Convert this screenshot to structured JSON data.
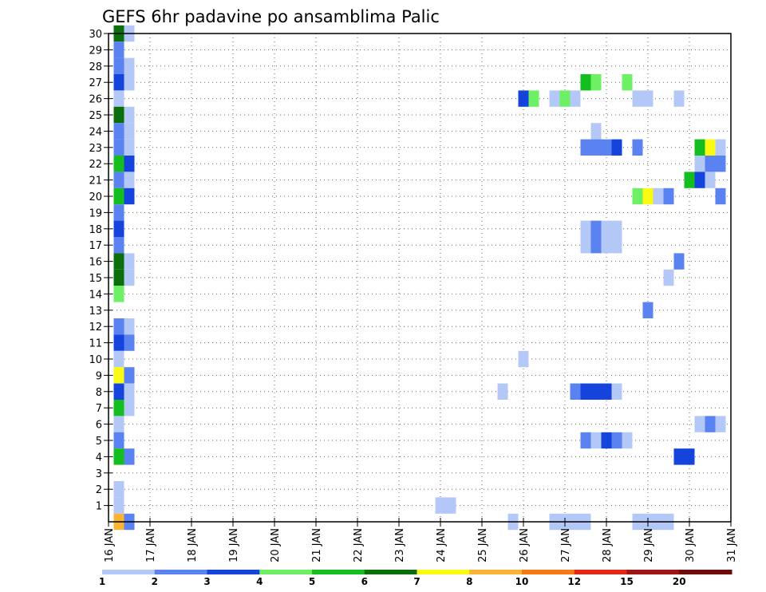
{
  "chart_data": {
    "type": "heatmap",
    "title": "GEFS 6hr padavine po ansamblima Palic",
    "x_axis": {
      "unit": "day of January (6-hour steps)",
      "range": [
        16,
        31
      ],
      "tick_values": [
        16,
        17,
        18,
        19,
        20,
        21,
        22,
        23,
        24,
        25,
        26,
        27,
        28,
        29,
        30,
        31
      ],
      "tick_labels": [
        "16 JAN",
        "17 JAN",
        "18 JAN",
        "19 JAN",
        "20 JAN",
        "21 JAN",
        "22 JAN",
        "23 JAN",
        "24 JAN",
        "25 JAN",
        "26 JAN",
        "27 JAN",
        "28 JAN",
        "29 JAN",
        "30 JAN",
        "31 JAN"
      ]
    },
    "y_axis": {
      "unit": "ensemble member",
      "range": [
        0,
        30
      ],
      "tick_values": [
        1,
        2,
        3,
        4,
        5,
        6,
        7,
        8,
        9,
        10,
        11,
        12,
        13,
        14,
        15,
        16,
        17,
        18,
        19,
        20,
        21,
        22,
        23,
        24,
        25,
        26,
        27,
        28,
        29,
        30
      ],
      "tick_labels": [
        "1",
        "2",
        "3",
        "4",
        "5",
        "6",
        "7",
        "8",
        "9",
        "10",
        "11",
        "12",
        "13",
        "14",
        "15",
        "16",
        "17",
        "18",
        "19",
        "20",
        "21",
        "22",
        "23",
        "24",
        "25",
        "26",
        "27",
        "28",
        "29",
        "30"
      ]
    },
    "grid": true,
    "legend": {
      "placement": "bottom",
      "labels": [
        "1",
        "2",
        "3",
        "4",
        "5",
        "6",
        "7",
        "8",
        "10",
        "12",
        "15",
        "20"
      ],
      "colors": [
        "#b4c8f8",
        "#5a82f0",
        "#1444dc",
        "#6ef064",
        "#14be1e",
        "#0a6e0a",
        "#fafa14",
        "#f8b432",
        "#f87814",
        "#e02814",
        "#a01414",
        "#6e0a0a"
      ]
    },
    "cells": [
      {
        "member": 30,
        "time": 16.25,
        "level": 5
      },
      {
        "member": 30,
        "time": 16.5,
        "level": 0
      },
      {
        "member": 29,
        "time": 16.25,
        "level": 1
      },
      {
        "member": 28,
        "time": 16.25,
        "level": 1
      },
      {
        "member": 28,
        "time": 16.5,
        "level": 0
      },
      {
        "member": 27,
        "time": 16.25,
        "level": 2
      },
      {
        "member": 27,
        "time": 16.5,
        "level": 0
      },
      {
        "member": 27,
        "time": 27.5,
        "level": 4
      },
      {
        "member": 27,
        "time": 27.75,
        "level": 3
      },
      {
        "member": 27,
        "time": 28.5,
        "level": 3
      },
      {
        "member": 26,
        "time": 16.25,
        "level": 0
      },
      {
        "member": 26,
        "time": 26,
        "level": 2
      },
      {
        "member": 26,
        "time": 26.25,
        "level": 3
      },
      {
        "member": 26,
        "time": 26.75,
        "level": 0
      },
      {
        "member": 26,
        "time": 27,
        "level": 3
      },
      {
        "member": 26,
        "time": 27.25,
        "level": 0
      },
      {
        "member": 26,
        "time": 28.75,
        "level": 0
      },
      {
        "member": 26,
        "time": 29,
        "level": 0
      },
      {
        "member": 26,
        "time": 29.75,
        "level": 0
      },
      {
        "member": 25,
        "time": 16.25,
        "level": 5
      },
      {
        "member": 25,
        "time": 16.5,
        "level": 0
      },
      {
        "member": 24,
        "time": 16.25,
        "level": 1
      },
      {
        "member": 24,
        "time": 16.5,
        "level": 0
      },
      {
        "member": 24,
        "time": 27.75,
        "level": 0
      },
      {
        "member": 23,
        "time": 16.25,
        "level": 1
      },
      {
        "member": 23,
        "time": 16.5,
        "level": 0
      },
      {
        "member": 23,
        "time": 27.5,
        "level": 1
      },
      {
        "member": 23,
        "time": 27.75,
        "level": 1
      },
      {
        "member": 23,
        "time": 28,
        "level": 1
      },
      {
        "member": 23,
        "time": 28.25,
        "level": 2
      },
      {
        "member": 23,
        "time": 28.75,
        "level": 1
      },
      {
        "member": 23,
        "time": 30.25,
        "level": 4
      },
      {
        "member": 23,
        "time": 30.5,
        "level": 6
      },
      {
        "member": 23,
        "time": 30.75,
        "level": 0
      },
      {
        "member": 22,
        "time": 16.25,
        "level": 4
      },
      {
        "member": 22,
        "time": 16.5,
        "level": 2
      },
      {
        "member": 22,
        "time": 30.25,
        "level": 0
      },
      {
        "member": 22,
        "time": 30.5,
        "level": 1
      },
      {
        "member": 22,
        "time": 30.75,
        "level": 1
      },
      {
        "member": 21,
        "time": 16.25,
        "level": 1
      },
      {
        "member": 21,
        "time": 16.5,
        "level": 0
      },
      {
        "member": 21,
        "time": 30,
        "level": 4
      },
      {
        "member": 21,
        "time": 30.25,
        "level": 2
      },
      {
        "member": 21,
        "time": 30.5,
        "level": 0
      },
      {
        "member": 20,
        "time": 16.25,
        "level": 4
      },
      {
        "member": 20,
        "time": 16.5,
        "level": 2
      },
      {
        "member": 20,
        "time": 28.75,
        "level": 3
      },
      {
        "member": 20,
        "time": 29,
        "level": 6
      },
      {
        "member": 20,
        "time": 29.25,
        "level": 0
      },
      {
        "member": 20,
        "time": 29.5,
        "level": 1
      },
      {
        "member": 20,
        "time": 30.75,
        "level": 1
      },
      {
        "member": 19,
        "time": 16.25,
        "level": 1
      },
      {
        "member": 18,
        "time": 16.25,
        "level": 2
      },
      {
        "member": 18,
        "time": 27.5,
        "level": 0
      },
      {
        "member": 18,
        "time": 27.75,
        "level": 1
      },
      {
        "member": 18,
        "time": 28,
        "level": 0
      },
      {
        "member": 18,
        "time": 28.25,
        "level": 0
      },
      {
        "member": 17,
        "time": 16.25,
        "level": 1
      },
      {
        "member": 17,
        "time": 27.5,
        "level": 0
      },
      {
        "member": 17,
        "time": 27.75,
        "level": 1
      },
      {
        "member": 17,
        "time": 28,
        "level": 0
      },
      {
        "member": 17,
        "time": 28.25,
        "level": 0
      },
      {
        "member": 16,
        "time": 16.25,
        "level": 5
      },
      {
        "member": 16,
        "time": 16.5,
        "level": 0
      },
      {
        "member": 16,
        "time": 29.75,
        "level": 1
      },
      {
        "member": 15,
        "time": 16.25,
        "level": 5
      },
      {
        "member": 15,
        "time": 16.5,
        "level": 0
      },
      {
        "member": 15,
        "time": 29.5,
        "level": 0
      },
      {
        "member": 14,
        "time": 16.25,
        "level": 3
      },
      {
        "member": 13,
        "time": 29,
        "level": 1
      },
      {
        "member": 12,
        "time": 16.25,
        "level": 1
      },
      {
        "member": 12,
        "time": 16.5,
        "level": 0
      },
      {
        "member": 11,
        "time": 16.25,
        "level": 2
      },
      {
        "member": 11,
        "time": 16.5,
        "level": 1
      },
      {
        "member": 10,
        "time": 16.25,
        "level": 0
      },
      {
        "member": 10,
        "time": 26,
        "level": 0
      },
      {
        "member": 9,
        "time": 16.25,
        "level": 6
      },
      {
        "member": 9,
        "time": 16.5,
        "level": 1
      },
      {
        "member": 8,
        "time": 16.25,
        "level": 2
      },
      {
        "member": 8,
        "time": 16.5,
        "level": 0
      },
      {
        "member": 8,
        "time": 25.5,
        "level": 0
      },
      {
        "member": 8,
        "time": 27.25,
        "level": 1
      },
      {
        "member": 8,
        "time": 27.5,
        "level": 2
      },
      {
        "member": 8,
        "time": 27.75,
        "level": 2
      },
      {
        "member": 8,
        "time": 28,
        "level": 2
      },
      {
        "member": 8,
        "time": 28.25,
        "level": 0
      },
      {
        "member": 7,
        "time": 16.25,
        "level": 4
      },
      {
        "member": 7,
        "time": 16.5,
        "level": 0
      },
      {
        "member": 6,
        "time": 16.25,
        "level": 0
      },
      {
        "member": 6,
        "time": 30.25,
        "level": 0
      },
      {
        "member": 6,
        "time": 30.5,
        "level": 1
      },
      {
        "member": 6,
        "time": 30.75,
        "level": 0
      },
      {
        "member": 5,
        "time": 16.25,
        "level": 1
      },
      {
        "member": 5,
        "time": 27.5,
        "level": 1
      },
      {
        "member": 5,
        "time": 27.75,
        "level": 0
      },
      {
        "member": 5,
        "time": 28,
        "level": 2
      },
      {
        "member": 5,
        "time": 28.25,
        "level": 1
      },
      {
        "member": 5,
        "time": 28.5,
        "level": 0
      },
      {
        "member": 4,
        "time": 16.25,
        "level": 4
      },
      {
        "member": 4,
        "time": 16.5,
        "level": 1
      },
      {
        "member": 4,
        "time": 29.75,
        "level": 2
      },
      {
        "member": 4,
        "time": 30,
        "level": 2
      },
      {
        "member": 2,
        "time": 16.25,
        "level": 0
      },
      {
        "member": 1,
        "time": 16.25,
        "level": 0
      },
      {
        "member": 1,
        "time": 24,
        "level": 0
      },
      {
        "member": 1,
        "time": 24.25,
        "level": 0
      },
      {
        "member": 0,
        "time": 16.25,
        "level": 7
      },
      {
        "member": 0,
        "time": 16.5,
        "level": 1
      },
      {
        "member": 0,
        "time": 25.75,
        "level": 0
      },
      {
        "member": 0,
        "time": 26.75,
        "level": 0
      },
      {
        "member": 0,
        "time": 27,
        "level": 0
      },
      {
        "member": 0,
        "time": 27.25,
        "level": 0
      },
      {
        "member": 0,
        "time": 27.5,
        "level": 0
      },
      {
        "member": 0,
        "time": 28.75,
        "level": 0
      },
      {
        "member": 0,
        "time": 29,
        "level": 0
      },
      {
        "member": 0,
        "time": 29.25,
        "level": 0
      },
      {
        "member": 0,
        "time": 29.5,
        "level": 0
      }
    ]
  }
}
